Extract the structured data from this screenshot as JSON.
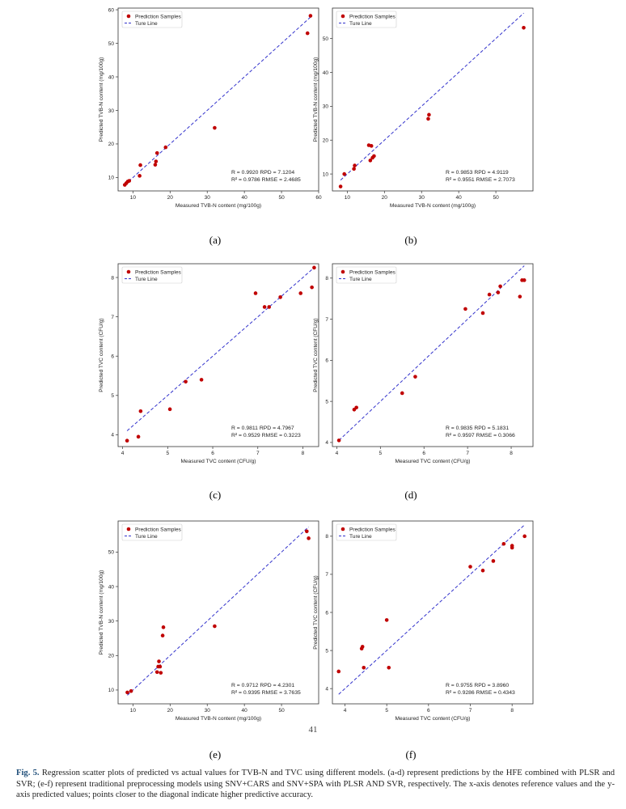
{
  "caption": {
    "label": "Fig. 5.",
    "text": "Regression scatter plots of predicted vs actual values for TVB-N and TVC using different models. (a-d) represent predictions by the HFE combined with PLSR and SVR; (e-f) represent traditional preprocessing models using SNV+CARS and SNV+SPA with PLSR AND SVR, respectively. The x-axis denotes reference values and the y-axis predicted values; points closer to the diagonal indicate higher predictive accuracy."
  },
  "page_number": "41",
  "colors": {
    "points": "#c00000",
    "true_line": "#3333cc"
  },
  "chart_data": [
    {
      "id": "a",
      "panel_label": "(a)",
      "type": "scatter",
      "xlabel": "Measured TVB-N content (mg/100g)",
      "ylabel": "Predicted TVB-N content (mg/100g)",
      "xlim": [
        6,
        60
      ],
      "ylim": [
        6,
        60.5
      ],
      "xticks": [
        10,
        20,
        30,
        40,
        50,
        60
      ],
      "yticks": [
        10,
        20,
        30,
        40,
        50,
        60
      ],
      "series": [
        {
          "name": "Prediction Samples",
          "x": [
            7.8,
            8.2,
            8.6,
            9.0,
            11.8,
            12.0,
            16.0,
            16.2,
            16.5,
            18.8,
            32.0,
            57.0,
            57.8
          ],
          "y": [
            7.8,
            8.3,
            8.8,
            9.0,
            10.5,
            13.7,
            13.8,
            14.8,
            17.3,
            19.0,
            24.8,
            53.0,
            58.2
          ]
        }
      ],
      "true_line": {
        "name": "Ture Line",
        "from": [
          7.8,
          7.8
        ],
        "to": [
          57.8,
          57.8
        ]
      },
      "stats": [
        "R   = 0.9920   RPD   = 7.1204",
        "R² = 0.9786  RMSE = 2.4685"
      ]
    },
    {
      "id": "b",
      "panel_label": "(b)",
      "type": "scatter",
      "xlabel": "Measured TVB-N content (mg/100g)",
      "ylabel": "Predicted TVB-N content (mg/100g)",
      "xlim": [
        6,
        60
      ],
      "ylim": [
        5,
        59
      ],
      "xticks": [
        10,
        20,
        30,
        40,
        50
      ],
      "yticks": [
        10,
        20,
        30,
        40,
        50
      ],
      "series": [
        {
          "name": "Prediction Samples",
          "x": [
            8.2,
            9.2,
            11.8,
            12.0,
            15.8,
            16.2,
            16.5,
            16.8,
            17.2,
            31.8,
            32.0,
            57.5
          ],
          "y": [
            6.3,
            10.0,
            11.5,
            12.5,
            18.5,
            14.0,
            18.3,
            14.8,
            15.3,
            26.3,
            27.5,
            53.2
          ]
        }
      ],
      "true_line": {
        "name": "Ture Line",
        "from": [
          8.2,
          8.2
        ],
        "to": [
          57.5,
          57.5
        ]
      },
      "stats": [
        "R   = 0.9853   RPD   = 4.9119",
        "R² = 0.9551  RMSE = 2.7073"
      ]
    },
    {
      "id": "c",
      "panel_label": "(c)",
      "type": "scatter",
      "xlabel": "Measured TVC content (CFU/g)",
      "ylabel": "Predicted TVC content (CFU/g)",
      "xlim": [
        3.9,
        8.35
      ],
      "ylim": [
        3.7,
        8.35
      ],
      "xticks": [
        4,
        5,
        6,
        7,
        8
      ],
      "yticks": [
        4,
        5,
        6,
        7,
        8
      ],
      "series": [
        {
          "name": "Prediction Samples",
          "x": [
            4.1,
            4.35,
            4.4,
            5.05,
            5.4,
            5.75,
            6.95,
            7.15,
            7.25,
            7.5,
            7.95,
            8.2,
            8.25
          ],
          "y": [
            3.85,
            3.95,
            4.6,
            4.65,
            5.35,
            5.4,
            7.6,
            7.25,
            7.25,
            7.5,
            7.6,
            7.75,
            8.25
          ]
        }
      ],
      "true_line": {
        "name": "Ture Line",
        "from": [
          4.1,
          4.1
        ],
        "to": [
          8.25,
          8.25
        ]
      },
      "stats": [
        "R   = 0.9811   RPD   = 4.7967",
        "R² = 0.9529  RMSE = 0.3223"
      ]
    },
    {
      "id": "d",
      "panel_label": "(d)",
      "type": "scatter",
      "xlabel": "Measured TVC content (CFU/g)",
      "ylabel": "Predicted TVC content (CFU/g)",
      "xlim": [
        3.9,
        8.5
      ],
      "ylim": [
        3.9,
        8.35
      ],
      "xticks": [
        4,
        5,
        6,
        7,
        8
      ],
      "yticks": [
        4,
        5,
        6,
        7,
        8
      ],
      "series": [
        {
          "name": "Prediction Samples",
          "x": [
            4.05,
            4.4,
            4.45,
            5.5,
            5.8,
            6.95,
            7.35,
            7.5,
            7.7,
            7.75,
            8.2,
            8.25,
            8.3
          ],
          "y": [
            4.05,
            4.8,
            4.85,
            5.2,
            5.6,
            7.25,
            7.15,
            7.6,
            7.65,
            7.8,
            7.55,
            7.95,
            7.95
          ]
        }
      ],
      "true_line": {
        "name": "Ture Line",
        "from": [
          4.05,
          4.05
        ],
        "to": [
          8.3,
          8.3
        ]
      },
      "stats": [
        "R   = 0.9835   RPD   = 5.1831",
        "R² = 0.9597  RMSE = 0.3066"
      ]
    },
    {
      "id": "e",
      "panel_label": "(e)",
      "type": "scatter",
      "xlabel": "Measured TVB-N content (mg/100g)",
      "ylabel": "Predicted TVB-N content (mg/100g)",
      "xlim": [
        6,
        60
      ],
      "ylim": [
        6,
        59
      ],
      "xticks": [
        10,
        20,
        30,
        40,
        50
      ],
      "yticks": [
        10,
        20,
        30,
        40,
        50
      ],
      "series": [
        {
          "name": "Prediction Samples",
          "x": [
            8.5,
            9.5,
            16.5,
            16.8,
            17.0,
            17.3,
            17.5,
            18.0,
            18.2,
            32.0,
            56.8,
            57.3
          ],
          "y": [
            9.3,
            9.7,
            15.2,
            16.8,
            18.3,
            16.8,
            15.0,
            25.8,
            28.2,
            28.5,
            56.0,
            54.0
          ]
        }
      ],
      "true_line": {
        "name": "Ture Line",
        "from": [
          8.5,
          8.5
        ],
        "to": [
          57.3,
          57.3
        ]
      },
      "stats": [
        "R   = 0.9712   RPD   = 4.2301",
        "R² = 0.9395  RMSE = 3.7635"
      ]
    },
    {
      "id": "f",
      "panel_label": "(f)",
      "type": "scatter",
      "xlabel": "Measured TVC content (CFU/g)",
      "ylabel": "Predicted TVC content (CFU/g)",
      "xlim": [
        3.7,
        8.5
      ],
      "ylim": [
        3.6,
        8.4
      ],
      "xticks": [
        4,
        5,
        6,
        7,
        8
      ],
      "yticks": [
        4,
        5,
        6,
        7,
        8
      ],
      "series": [
        {
          "name": "Prediction Samples",
          "x": [
            3.85,
            4.4,
            4.42,
            4.45,
            5.0,
            5.05,
            7.0,
            7.3,
            7.55,
            7.8,
            8.0,
            8.0,
            8.3
          ],
          "y": [
            4.45,
            5.05,
            5.1,
            4.55,
            5.8,
            4.55,
            7.2,
            7.1,
            7.35,
            7.8,
            7.7,
            7.75,
            8.0
          ]
        }
      ],
      "true_line": {
        "name": "Ture Line",
        "from": [
          3.85,
          3.85
        ],
        "to": [
          8.3,
          8.3
        ]
      },
      "stats": [
        "R   = 0.9755   RPD   = 3.8960",
        "R² = 0.9286  RMSE = 0.4343"
      ]
    }
  ]
}
